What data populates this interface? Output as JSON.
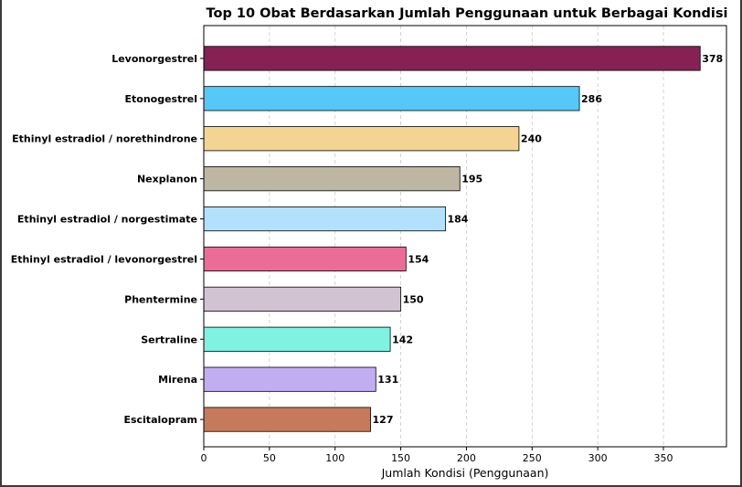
{
  "chart_data": {
    "type": "bar",
    "orientation": "horizontal",
    "title": "Top 10 Obat Berdasarkan Jumlah Penggunaan untuk Berbagai Kondisi",
    "xlabel": "Jumlah Kondisi (Penggunaan)",
    "ylabel": "",
    "categories": [
      "Levonorgestrel",
      "Etonogestrel",
      "Ethinyl estradiol / norethindrone",
      "Nexplanon",
      "Ethinyl estradiol / norgestimate",
      "Ethinyl estradiol / levonorgestrel",
      "Phentermine",
      "Sertraline",
      "Mirena",
      "Escitalopram"
    ],
    "values": [
      378,
      286,
      240,
      195,
      184,
      154,
      150,
      142,
      131,
      127
    ],
    "value_labels": [
      "378",
      "286",
      "240",
      "195",
      "184",
      "154",
      "150",
      "142",
      "131",
      "127"
    ],
    "colors": [
      "#862153",
      "#55c8f7",
      "#f4d492",
      "#bcb6a3",
      "#b3e0fd",
      "#ec6c98",
      "#d2c3d3",
      "#7ff2e1",
      "#c1adf1",
      "#c57b5b"
    ],
    "xlim": [
      0,
      398
    ],
    "xticks": [
      0,
      50,
      100,
      150,
      200,
      250,
      300,
      350
    ],
    "xtick_labels": [
      "0",
      "50",
      "100",
      "150",
      "200",
      "250",
      "300",
      "350"
    ],
    "grid": "vertical dashed",
    "legend": "none"
  }
}
